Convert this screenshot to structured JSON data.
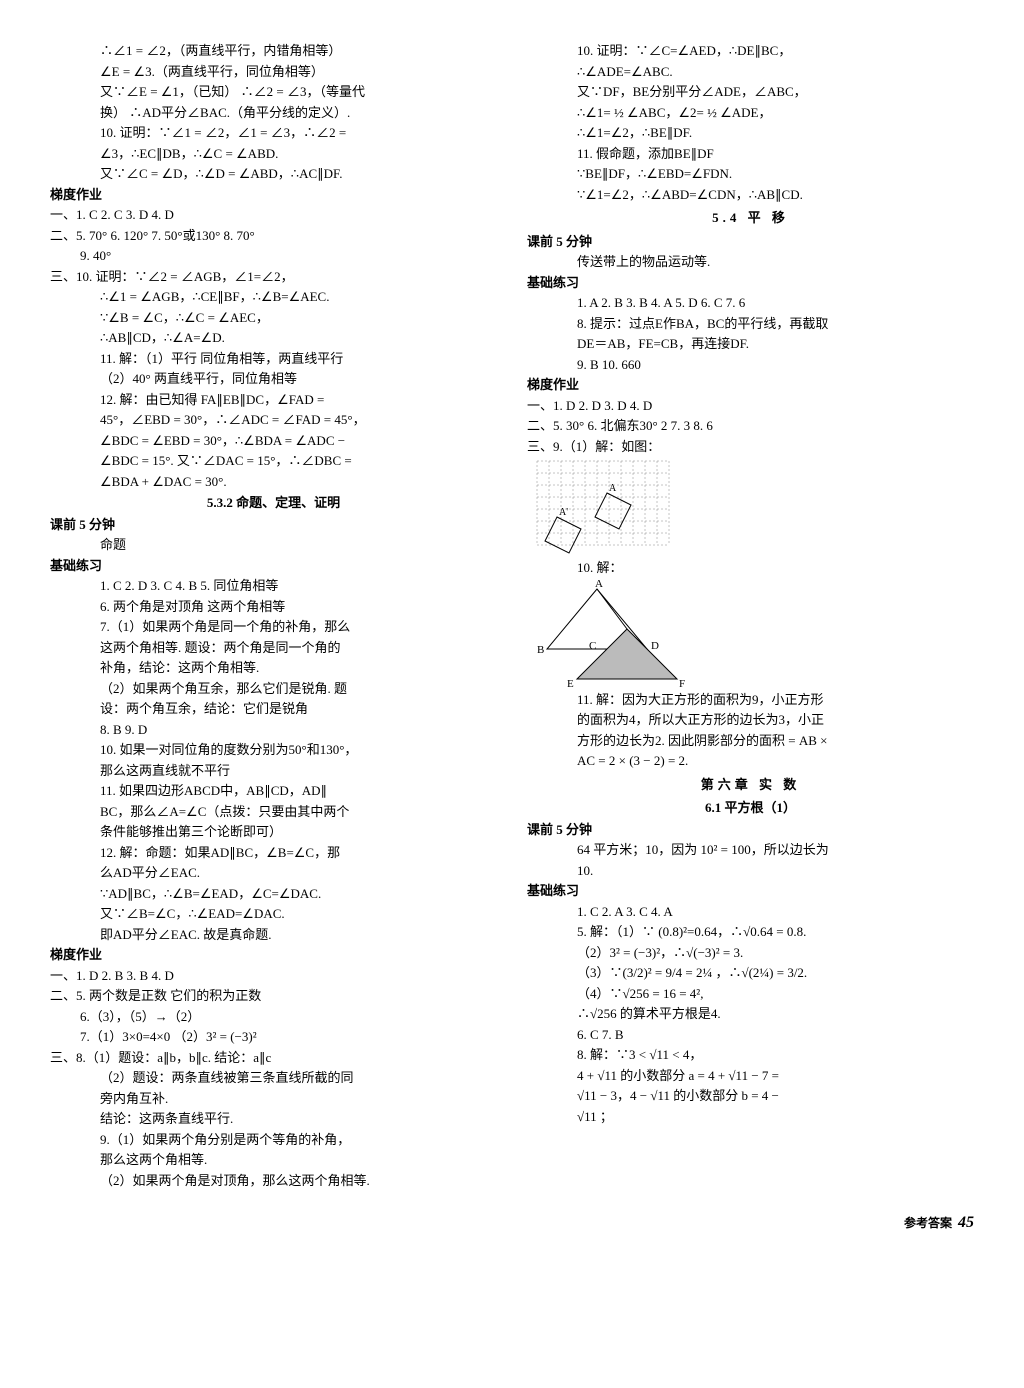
{
  "left": {
    "l1": "∴∠1 = ∠2，（两直线平行，内错角相等）",
    "l2": "∠E = ∠3.（两直线平行，同位角相等）",
    "l3": "又∵∠E = ∠1，（已知）  ∴∠2 = ∠3，（等量代",
    "l4": "换）  ∴AD平分∠BAC.（角平分线的定义）.",
    "l5": "10. 证明：∵∠1 = ∠2，∠1 = ∠3，∴∠2 =",
    "l6": "∠3，∴EC∥DB，∴∠C = ∠ABD.",
    "l7": "又∵∠C = ∠D，∴∠D = ∠ABD，∴AC∥DF.",
    "tdzy1": "梯度作业",
    "l8": "一、1. C  2. C  3. D  4. D",
    "l9": "二、5. 70°  6. 120°  7. 50°或130°  8. 70°",
    "l10": "9. 40°",
    "l11": "三、10. 证明：∵∠2 = ∠AGB，∠1=∠2，",
    "l12": "∴∠1 = ∠AGB，∴CE∥BF，∴∠B=∠AEC.",
    "l13": "∵∠B = ∠C，∴∠C = ∠AEC，",
    "l14": "∴AB∥CD，∴∠A=∠D.",
    "l15": "11. 解：（1）平行  同位角相等，两直线平行",
    "l16": "（2）40°  两直线平行，同位角相等",
    "l17": "12. 解：由已知得 FA∥EB∥DC，∠FAD =",
    "l18": "45°，∠EBD = 30°，∴∠ADC = ∠FAD = 45°，",
    "l19": "∠BDC = ∠EBD = 30°，∴∠BDA = ∠ADC −",
    "l20": "∠BDC = 15°. 又∵∠DAC = 15°，∴∠DBC =",
    "l21": "∠BDA + ∠DAC = 30°.",
    "sec532": "5.3.2  命题、定理、证明",
    "kq5a": "课前 5 分钟",
    "l22": "命题",
    "jclx1": "基础练习",
    "l23": "1. C  2. D  3. C  4. B  5. 同位角相等",
    "l24": "6. 两个角是对顶角  这两个角相等",
    "l25": "7.（1）如果两个角是同一个角的补角，那么",
    "l26": "这两个角相等.   题设：两个角是同一个角的",
    "l27": "补角，结论：这两个角相等.",
    "l28": "（2）如果两个角互余，那么它们是锐角. 题",
    "l29": "设：两个角互余，结论：它们是锐角",
    "l30": "8. B  9. D",
    "l31": "10. 如果一对同位角的度数分别为50°和130°，",
    "l32": "那么这两直线就不平行",
    "l33": "11. 如果四边形ABCD中，AB∥CD，AD∥",
    "l34": "BC，那么∠A=∠C（点拨：只要由其中两个",
    "l35": "条件能够推出第三个论断即可）",
    "l36": "12. 解：命题：如果AD∥BC，∠B=∠C，那",
    "l37": "么AD平分∠EAC.",
    "l38": "∵AD∥BC，∴∠B=∠EAD，∠C=∠DAC.",
    "l39": "又∵∠B=∠C，∴∠EAD=∠DAC.",
    "l40": "即AD平分∠EAC. 故是真命题.",
    "tdzy2": "梯度作业",
    "l41": "一、1. D  2. B  3. B  4. D",
    "l42": "二、5. 两个数是正数  它们的积为正数",
    "l43": "6.（3），（5）→（2）",
    "l44": "7.（1）3×0=4×0   （2）3² = (−3)²",
    "l45": "三、8.（1）题设：a∥b，b∥c. 结论：a∥c",
    "l46": "（2）题设：两条直线被第三条直线所截的同",
    "l47": "旁内角互补.",
    "l48": "结论：这两条直线平行.",
    "l49": "9.（1）如果两个角分别是两个等角的补角，",
    "l50": "那么这两个角相等.",
    "l51": "（2）如果两个角是对顶角，那么这两个角相等."
  },
  "right": {
    "r1": "10. 证明：∵∠C=∠AED，∴DE∥BC，",
    "r2": "∴∠ADE=∠ABC.",
    "r3": "又∵DF，BE分别平分∠ADE，∠ABC，",
    "r4": "∴∠1= ½ ∠ABC，∠2= ½ ∠ADE，",
    "r5": "∴∠1=∠2，∴BE∥DF.",
    "r6": "11. 假命题，添加BE∥DF",
    "r7": "∵BE∥DF，∴∠EBD=∠FDN.",
    "r8": "∵∠1=∠2，∴∠ABD=∠CDN，∴AB∥CD.",
    "sec54": "5.4  平  移",
    "kq5b": "课前 5 分钟",
    "r9": "传送带上的物品运动等.",
    "jclx2": "基础练习",
    "r10": "1. A  2. B  3. B  4. A  5. D  6. C  7. 6",
    "r11": "8. 提示：过点E作BA，BC的平行线，再截取",
    "r12": "DE＝AB，FE=CB，再连接DF.",
    "r13": "9. B  10. 660",
    "tdzy3": "梯度作业",
    "r14": "一、1. D  2. D  3. D  4. D",
    "r15": "二、5. 30°  6. 北偏东30°  2  7. 3  8. 6",
    "r16": "三、9.（1）解：如图：",
    "r17": "10. 解：",
    "r18": "11. 解：因为大正方形的面积为9，小正方形",
    "r19": "的面积为4，所以大正方形的边长为3，小正",
    "r20": "方形的边长为2. 因此阴影部分的面积 = AB ×",
    "r21": "AC = 2 × (3 − 2) = 2.",
    "ch6": "第六章  实  数",
    "sec61": "6.1  平方根（1）",
    "kq5c": "课前 5 分钟",
    "r22": "64 平方米；10，因为 10² = 100，所以边长为",
    "r23": "10.",
    "jclx3": "基础练习",
    "r24": "1. C  2. A  3. C  4. A",
    "r25": "5. 解：（1）∵ (0.8)²=0.64，∴√0.64 = 0.8.",
    "r26": "（2）3² = (−3)²，∴√(−3)² = 3.",
    "r27": "（3）∵(3/2)² = 9/4 = 2¼ ，∴√(2¼) = 3/2.",
    "r28": "（4）∵√256 = 16 = 4²,",
    "r29": "∴√256 的算术平方根是4.",
    "r30": "6. C  7. B",
    "r31": "8. 解：∵3 < √11 < 4，",
    "r32": "4 + √11 的小数部分 a = 4 + √11 − 7 =",
    "r33": "√11 − 3，4 − √11 的小数部分 b = 4 −",
    "r34": "√11 ；"
  },
  "figures": {
    "grid": {
      "cols": 11,
      "rows": 7,
      "cell": 12,
      "shape1_color": "#808080",
      "shape2_color": "#c0c0c0",
      "grid_color": "#888888",
      "label_A": "A",
      "label_Ap": "A'"
    },
    "tri": {
      "A": "A",
      "B": "B",
      "C": "C",
      "D": "D",
      "E": "E",
      "F": "F"
    }
  },
  "footer": {
    "label": "参考答案",
    "page": "45"
  }
}
